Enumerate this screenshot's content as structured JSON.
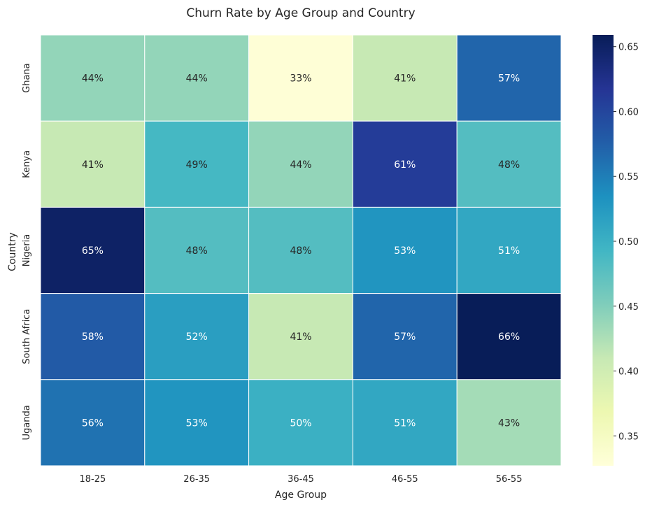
{
  "chart_data": {
    "type": "heatmap",
    "title": "Churn Rate by Age Group and Country",
    "xlabel": "Age Group",
    "ylabel": "Country",
    "x_categories": [
      "18-25",
      "26-35",
      "36-45",
      "46-55",
      "56-55"
    ],
    "y_categories": [
      "Ghana",
      "Kenya",
      "Nigeria",
      "South Africa",
      "Uganda"
    ],
    "values": [
      [
        0.44,
        0.44,
        0.33,
        0.41,
        0.57
      ],
      [
        0.41,
        0.49,
        0.44,
        0.61,
        0.48
      ],
      [
        0.65,
        0.48,
        0.48,
        0.53,
        0.51
      ],
      [
        0.58,
        0.52,
        0.41,
        0.57,
        0.66
      ],
      [
        0.56,
        0.53,
        0.5,
        0.51,
        0.43
      ]
    ],
    "cell_labels": [
      [
        "44%",
        "44%",
        "33%",
        "41%",
        "57%"
      ],
      [
        "41%",
        "49%",
        "44%",
        "61%",
        "48%"
      ],
      [
        "65%",
        "48%",
        "48%",
        "53%",
        "51%"
      ],
      [
        "58%",
        "52%",
        "41%",
        "57%",
        "66%"
      ],
      [
        "56%",
        "53%",
        "50%",
        "51%",
        "43%"
      ]
    ],
    "colormap": "YlGnBu",
    "colorbar": {
      "vmin": 0.327,
      "vmax": 0.659,
      "ticks": [
        0.35,
        0.4,
        0.45,
        0.5,
        0.55,
        0.6,
        0.65
      ],
      "tick_labels": [
        "0.35",
        "0.40",
        "0.45",
        "0.50",
        "0.55",
        "0.60",
        "0.65"
      ]
    },
    "legend_placement": "right"
  }
}
